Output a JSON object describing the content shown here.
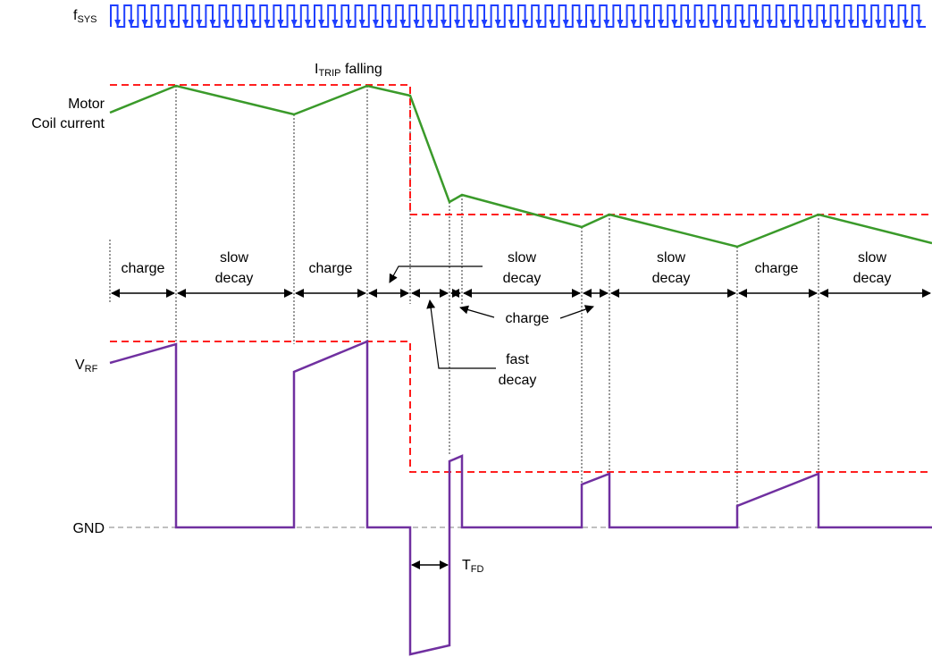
{
  "labels": {
    "fsys_main": "f",
    "fsys_sub": "SYS",
    "itrip_main": "I",
    "itrip_sub": "TRIP",
    "itrip_tail": " falling",
    "motor_line1": "Motor",
    "motor_line2": "Coil current",
    "vrf_main": "V",
    "vrf_sub": "RF",
    "gnd": "GND",
    "tfd_main": "T",
    "tfd_sub": "FD"
  },
  "phases": {
    "charge_1": "charge",
    "slow_decay_1": [
      "slow",
      "decay"
    ],
    "charge_2": "charge",
    "slow_decay_2": [
      "slow",
      "decay"
    ],
    "slow_decay_3": [
      "slow",
      "decay"
    ],
    "charge_3": "charge",
    "slow_decay_4": [
      "slow",
      "decay"
    ]
  },
  "callouts": {
    "charge": "charge",
    "fast_decay": [
      "fast",
      "decay"
    ]
  },
  "colors": {
    "clock": "#1f3fff",
    "current": "#3a9a2a",
    "vrf": "#7030a0",
    "threshold": "#ff0000",
    "gnd_line": "#808080",
    "guides": "#000000"
  }
}
